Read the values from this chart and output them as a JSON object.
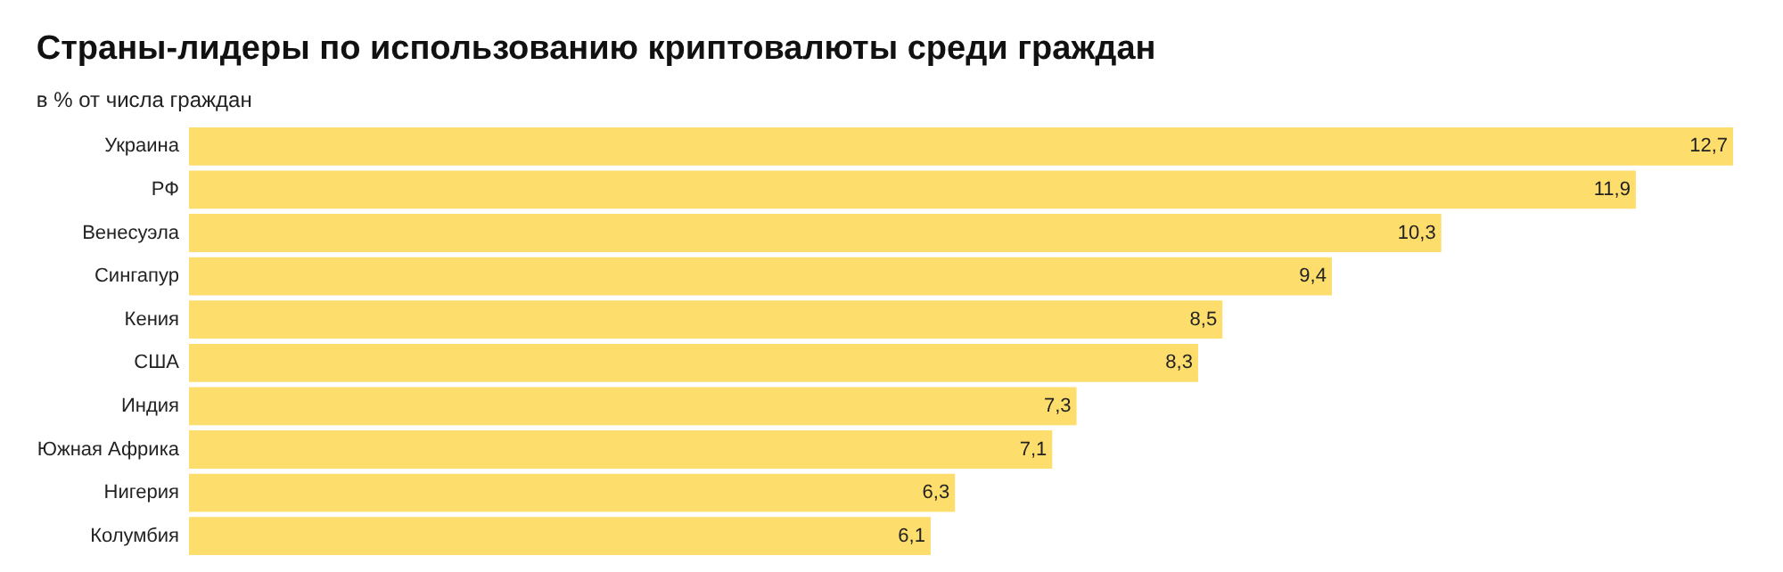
{
  "chart_data": {
    "type": "bar",
    "orientation": "horizontal",
    "title": "Страны-лидеры по использованию криптовалюты среди граждан",
    "subtitle": "в % от числа граждан",
    "categories": [
      "Украина",
      "РФ",
      "Венесуэла",
      "Сингапур",
      "Кения",
      "США",
      "Индия",
      "Южная Африка",
      "Нигерия",
      "Колумбия"
    ],
    "values": [
      12.7,
      11.9,
      10.3,
      9.4,
      8.5,
      8.3,
      7.3,
      7.1,
      6.3,
      6.1
    ],
    "value_labels": [
      "12,7",
      "11,9",
      "10,3",
      "9,4",
      "8,5",
      "8,3",
      "7,3",
      "7,1",
      "6,3",
      "6,1"
    ],
    "color": "#fddd6c"
  }
}
